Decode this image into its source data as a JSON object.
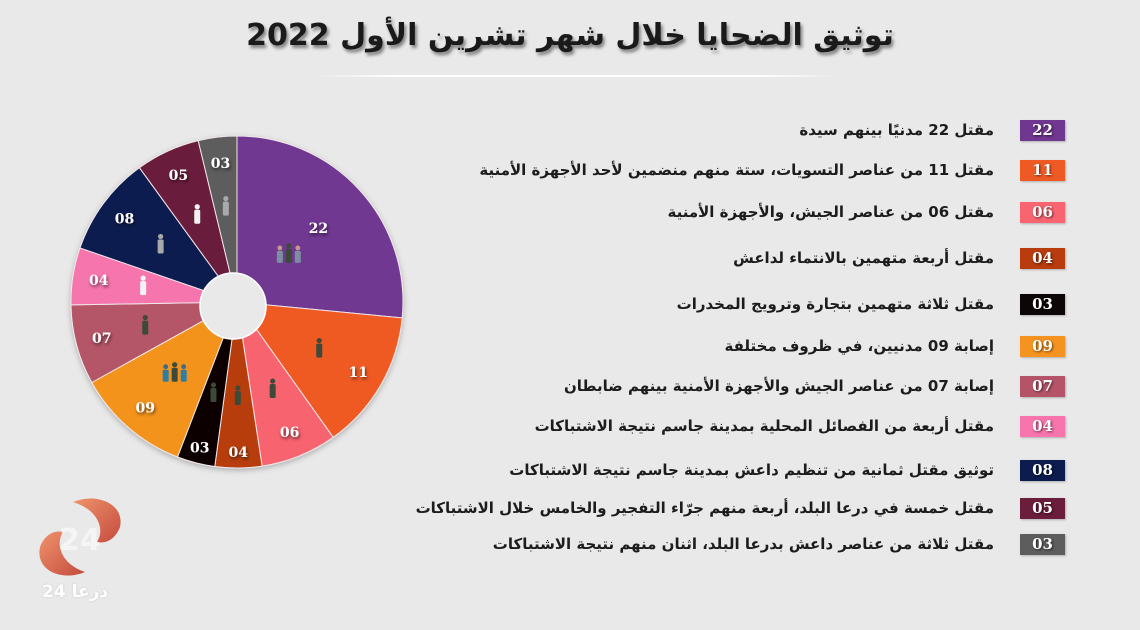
{
  "title": "توثيق الضحايا خلال شهر تشرين الأول 2022",
  "legend": [
    {
      "value": "22",
      "color": "#6f3790",
      "text": "مقتل 22 مدنيًا بينهم سيدة"
    },
    {
      "value": "11",
      "color": "#ef5a24",
      "text": "مقتل 11 من عناصر التسويات، ستة منهم منضمين لأحد الأجهزة الأمنية"
    },
    {
      "value": "06",
      "color": "#f8646f",
      "text": "مقتل 06 من عناصر الجيش، والأجهزة الأمنية"
    },
    {
      "value": "04",
      "color": "#b83c0e",
      "text": "مقتل  أربعة متهمين بالانتماء لداعش"
    },
    {
      "value": "03",
      "color": "#0d0606",
      "text": "مقتل  ثلاثة متهمين بتجارة وترويج المخدرات"
    },
    {
      "value": "09",
      "color": "#f4931f",
      "text": "إصابة 09 مدنيين، في ظروف مختلفة"
    },
    {
      "value": "07",
      "color": "#b55468",
      "text": "إصابة 07 من عناصر الجيش والأجهزة الأمنية بينهم ضابطان"
    },
    {
      "value": "04",
      "color": "#f774ad",
      "text": "مقتل أربعة من الفصائل المحلية بمدينة جاسم نتيجة الاشتباكات"
    },
    {
      "value": "08",
      "color": "#0c1c4f",
      "text": "توثيق مقتل ثمانية من تنظيم داعش بمدينة جاسم نتيجة الاشتباكات"
    },
    {
      "value": "05",
      "color": "#6b1d3c",
      "text": "مقتل خمسة في درعا البلد، أربعة منهم جرّاء التفجير والخامس خلال الاشتباكات"
    },
    {
      "value": "03",
      "color": "#5d5d5d",
      "text": "مقتل ثلاثة من عناصر داعش بدرعا البلد، اثنان منهم نتيجة الاشتباكات"
    }
  ],
  "logo": {
    "text": "24 درعا"
  },
  "chart_data": {
    "type": "pie",
    "title": "توثيق الضحايا خلال شهر تشرين الأول 2022",
    "donut": true,
    "categories": [
      "مقتل 22 مدنيًا بينهم سيدة",
      "مقتل 11 من عناصر التسويات",
      "مقتل 06 من عناصر الجيش والأجهزة الأمنية",
      "مقتل أربعة متهمين بالانتماء لداعش",
      "مقتل ثلاثة متهمين بتجارة وترويج المخدرات",
      "إصابة 09 مدنيين",
      "إصابة 07 من عناصر الجيش والأجهزة الأمنية",
      "مقتل أربعة من الفصائل المحلية بمدينة جاسم",
      "مقتل ثمانية من تنظيم داعش بمدينة جاسم",
      "مقتل خمسة في درعا البلد",
      "مقتل ثلاثة من عناصر داعش بدرعا البلد"
    ],
    "values": [
      22,
      11,
      6,
      4,
      3,
      9,
      7,
      4,
      8,
      5,
      3
    ],
    "labels": [
      "22",
      "11",
      "06",
      "04",
      "03",
      "09",
      "07",
      "04",
      "08",
      "05",
      "03"
    ],
    "colors": [
      "#6f3790",
      "#ef5a24",
      "#f8646f",
      "#b83c0e",
      "#0d0606",
      "#f4931f",
      "#b55468",
      "#f774ad",
      "#0c1c4f",
      "#6b1d3c",
      "#5d5d5d"
    ],
    "drawn_boundaries_deg": [
      0,
      95.5,
      144.6,
      171.3,
      187.7,
      201,
      241,
      269,
      289,
      324,
      346.5,
      360
    ],
    "legend_position": "right"
  }
}
